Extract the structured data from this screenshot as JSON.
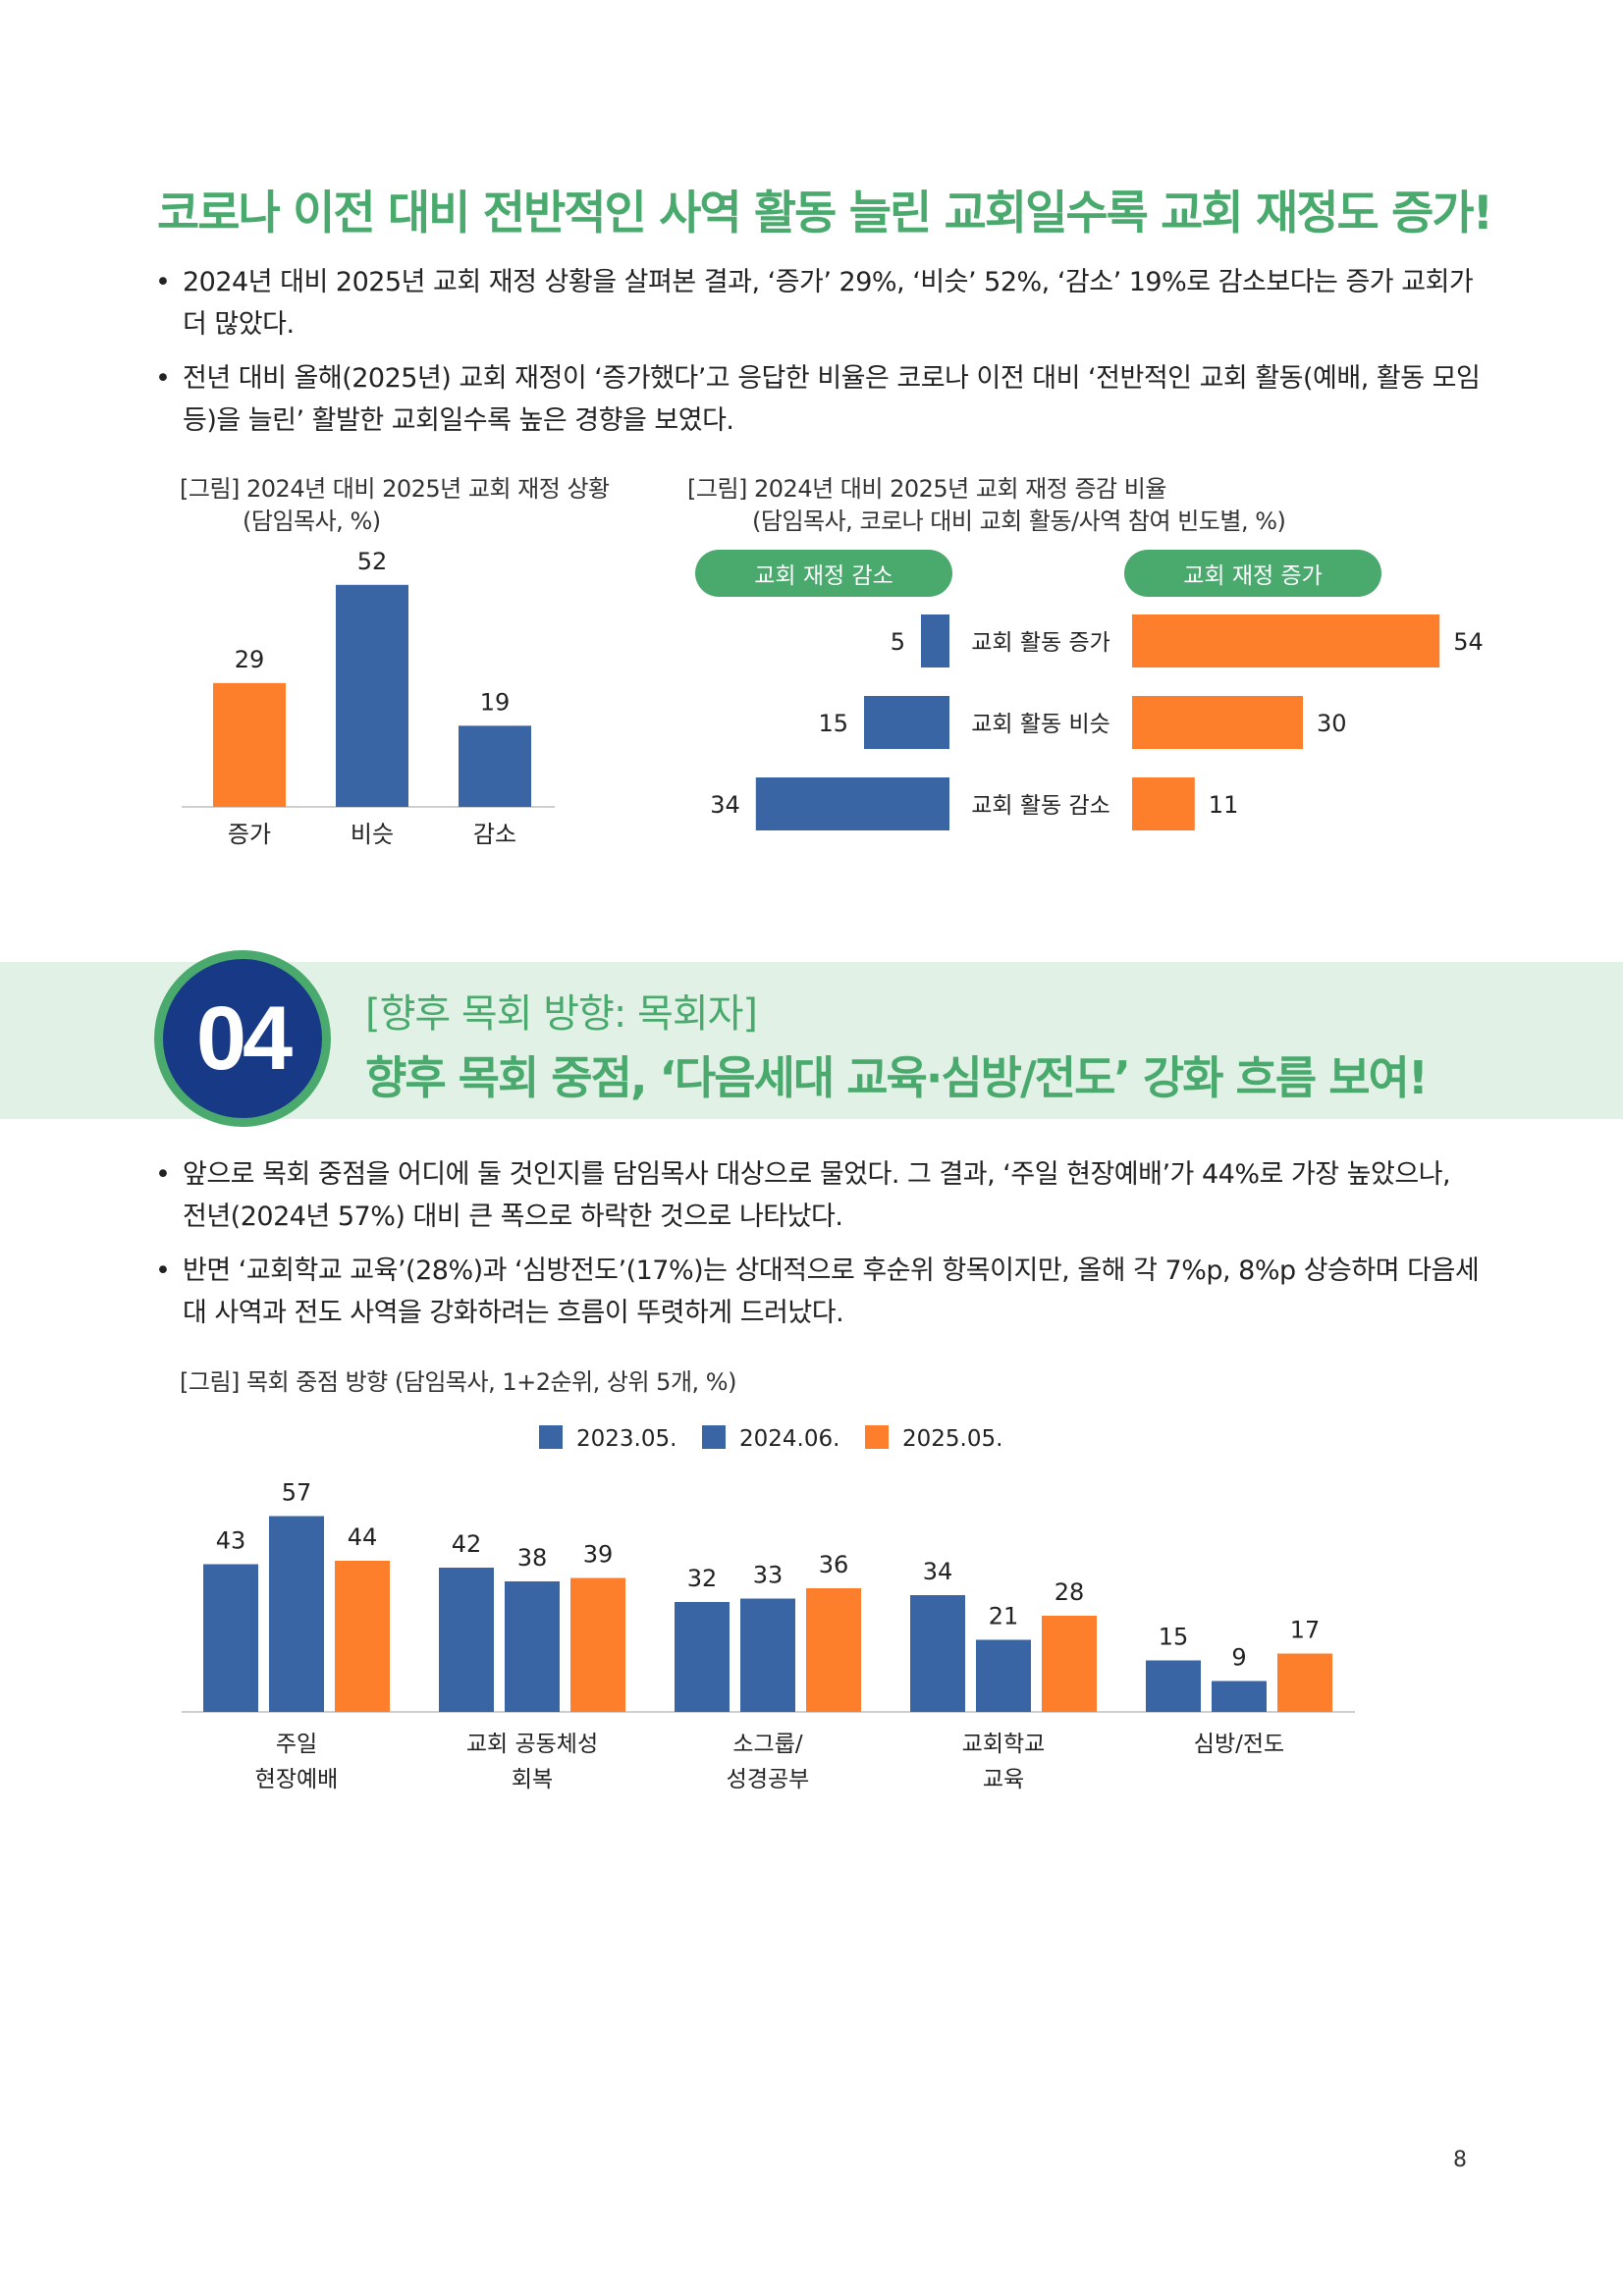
{
  "headline": "코로나 이전 대비 전반적인 사역 활동 늘린 교회일수록 교회 재정도 증가!",
  "bullets1": [
    "2024년 대비 2025년 교회 재정 상황을 살펴본 결과, ‘증가’ 29%, ‘비슷’ 52%, ‘감소’ 19%로 감소보다는 증가 교회가 더 많았다.",
    "전년 대비 올해(2025년) 교회 재정이 ‘증가했다’고 응답한 비율은 코로나 이전 대비 ‘전반적인 교회 활동(예배, 활동 모임 등)을 늘린’ 활발한 교회일수록 높은 경향을 보였다."
  ],
  "fig1": {
    "caption1": "[그림] 2024년 대비 2025년 교회 재정 상황",
    "caption2": "(담임목사, %)"
  },
  "fig2": {
    "caption1": "[그림] 2024년 대비 2025년 교회 재정 증감 비율",
    "caption2": "(담임목사, 코로나 대비 교회 활동/사역 참여 빈도별, %)",
    "pill_left": "교회 재정 감소",
    "pill_right": "교회 재정 증가"
  },
  "section": {
    "number": "04",
    "subtitle": "[향후 목회 방향: 목회자]",
    "title": "향후 목회 중점, ‘다음세대 교육·심방/전도’ 강화 흐름 보여!"
  },
  "bullets2": [
    "앞으로 목회 중점을 어디에 둘 것인지를 담임목사 대상으로 물었다. 그 결과, ‘주일 현장예배’가 44%로 가장 높았으나, 전년(2024년 57%) 대비 큰 폭으로 하락한 것으로 나타났다.",
    "반면 ‘교회학교 교육’(28%)과 ‘심방전도’(17%)는 상대적으로 후순위 항목이지만, 올해 각 7%p, 8%p 상승하며 다음세대 사역과 전도 사역을 강화하려는 흐름이 뚜렷하게 드러났다."
  ],
  "fig3": {
    "caption": "[그림] 목회 중점 방향 (담임목사, 1+2순위, 상위 5개, %)"
  },
  "page_number": "8",
  "colors": {
    "green": "#4aaa6e",
    "blue": "#3a65a4",
    "orange": "#fd7f2c",
    "navy": "#183a86"
  },
  "chart_data": [
    {
      "type": "bar",
      "title": "2024년 대비 2025년 교회 재정 상황",
      "categories": [
        "증가",
        "비슷",
        "감소"
      ],
      "values": [
        29,
        52,
        19
      ],
      "ylim": [
        0,
        60
      ]
    },
    {
      "type": "bar",
      "orientation": "horizontal-diverging",
      "title": "2024년 대비 2025년 교회 재정 증감 비율",
      "categories": [
        "교회 활동 증가",
        "교회 활동 비슷",
        "교회 활동 감소"
      ],
      "series": [
        {
          "name": "교회 재정 감소",
          "values": [
            5,
            15,
            34
          ]
        },
        {
          "name": "교회 재정 증가",
          "values": [
            54,
            30,
            11
          ]
        }
      ]
    },
    {
      "type": "bar",
      "title": "목회 중점 방향",
      "categories": [
        [
          "주일",
          "현장예배"
        ],
        [
          "교회 공동체성",
          "회복"
        ],
        [
          "소그룹/",
          "성경공부"
        ],
        [
          "교회학교",
          "교육"
        ],
        [
          "심방/전도"
        ]
      ],
      "series": [
        {
          "name": "2023.05.",
          "values": [
            43,
            42,
            32,
            34,
            15
          ]
        },
        {
          "name": "2024.06.",
          "values": [
            57,
            38,
            33,
            21,
            9
          ]
        },
        {
          "name": "2025.05.",
          "values": [
            44,
            39,
            36,
            28,
            17
          ]
        }
      ],
      "ylim": [
        0,
        60
      ]
    }
  ]
}
